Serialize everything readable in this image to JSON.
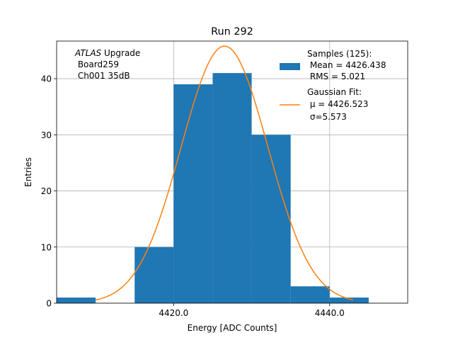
{
  "chart_data": {
    "type": "bar",
    "title": "Run 292",
    "xlabel": "Energy [ADC Counts]",
    "ylabel": "Entries",
    "xlim": [
      4405,
      4450
    ],
    "ylim": [
      0,
      46.7
    ],
    "grid": true,
    "xticks": [
      {
        "value": 4420,
        "label": "4420.0"
      },
      {
        "value": 4440,
        "label": "4440.0"
      }
    ],
    "yticks": [
      {
        "value": 0,
        "label": "0"
      },
      {
        "value": 10,
        "label": "10"
      },
      {
        "value": 20,
        "label": "20"
      },
      {
        "value": 30,
        "label": "30"
      },
      {
        "value": 40,
        "label": "40"
      }
    ],
    "histogram": {
      "name": "Samples (125):",
      "color": "#1f77b4",
      "bins": [
        {
          "x0": 4405,
          "x1": 4410,
          "count": 1
        },
        {
          "x0": 4410,
          "x1": 4415,
          "count": 0
        },
        {
          "x0": 4415,
          "x1": 4420,
          "count": 10
        },
        {
          "x0": 4420,
          "x1": 4425,
          "count": 39
        },
        {
          "x0": 4425,
          "x1": 4430,
          "count": 41
        },
        {
          "x0": 4430,
          "x1": 4435,
          "count": 30
        },
        {
          "x0": 4435,
          "x1": 4440,
          "count": 3
        },
        {
          "x0": 4440,
          "x1": 4445,
          "count": 1
        }
      ]
    },
    "fit": {
      "name": "Gaussian Fit:",
      "color": "#ff7f0e",
      "mu": 4426.523,
      "sigma": 5.573,
      "amplitude": 45.8,
      "x_range": [
        4410,
        4443
      ]
    },
    "legend": {
      "position": "top-right",
      "hist_lines": [
        "Samples (125):",
        " Mean = 4426.438",
        " RMS = 5.021"
      ],
      "fit_lines": [
        "Gaussian Fit:",
        " μ = 4426.523",
        " σ=5.573"
      ]
    },
    "annotation": {
      "atlas": "ATLAS",
      "rest": " Upgrade",
      "lines": [
        " Board259",
        " Ch001 35dB"
      ]
    }
  }
}
